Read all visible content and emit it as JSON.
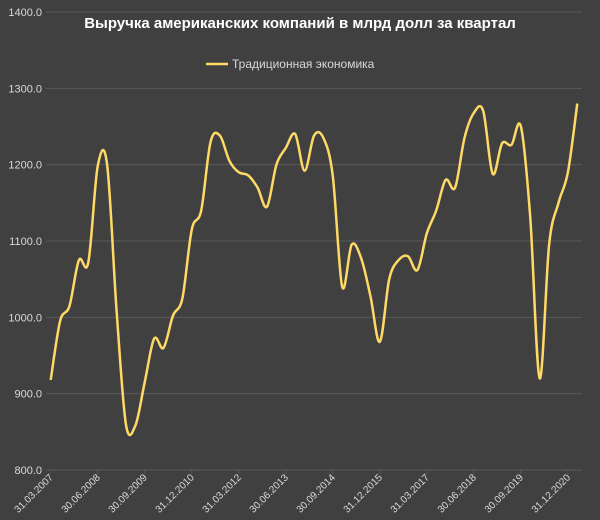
{
  "chart_data": {
    "type": "line",
    "title": "Выручка американских компаний в млрд долл за квартал",
    "legend_position": "top-center",
    "grid": true,
    "ylim": [
      800,
      1400
    ],
    "yticks": [
      "800.0",
      "900.0",
      "1000.0",
      "1100.0",
      "1200.0",
      "1300.0",
      "1400.0"
    ],
    "x_tick_labels": [
      "31.03.2007",
      "30.06.2008",
      "30.09.2009",
      "31.12.2010",
      "31.03.2012",
      "30.06.2013",
      "30.09.2014",
      "31.12.2015",
      "31.03.2017",
      "30.06.2018",
      "30.09.2019",
      "31.12.2020"
    ],
    "x": [
      "31.03.2007",
      "30.06.2007",
      "30.09.2007",
      "31.12.2007",
      "31.03.2008",
      "30.06.2008",
      "30.09.2008",
      "31.12.2008",
      "31.03.2009",
      "30.06.2009",
      "30.09.2009",
      "31.12.2009",
      "31.03.2010",
      "30.06.2010",
      "30.09.2010",
      "31.12.2010",
      "31.03.2011",
      "30.06.2011",
      "30.09.2011",
      "31.12.2011",
      "31.03.2012",
      "30.06.2012",
      "30.09.2012",
      "31.12.2012",
      "31.03.2013",
      "30.06.2013",
      "30.09.2013",
      "31.12.2013",
      "31.03.2014",
      "30.06.2014",
      "30.09.2014",
      "31.12.2014",
      "31.03.2015",
      "30.06.2015",
      "30.09.2015",
      "31.12.2015",
      "31.03.2016",
      "30.06.2016",
      "30.09.2016",
      "31.12.2016",
      "31.03.2017",
      "30.06.2017",
      "30.09.2017",
      "31.12.2017",
      "31.03.2018",
      "30.06.2018",
      "30.09.2018",
      "31.12.2018",
      "31.03.2019",
      "30.06.2019",
      "30.09.2019",
      "31.12.2019",
      "31.03.2020",
      "30.06.2020",
      "30.09.2020",
      "31.12.2020",
      "31.03.2021"
    ],
    "series": [
      {
        "name": "Традиционная экономика",
        "color": "#ffd966",
        "values": [
          918,
          995,
          1015,
          1075,
          1072,
          1198,
          1200,
          1010,
          860,
          858,
          915,
          972,
          960,
          1002,
          1025,
          1115,
          1140,
          1230,
          1238,
          1205,
          1190,
          1186,
          1170,
          1145,
          1200,
          1222,
          1240,
          1192,
          1238,
          1235,
          1185,
          1040,
          1095,
          1078,
          1028,
          968,
          1050,
          1075,
          1080,
          1062,
          1110,
          1140,
          1180,
          1170,
          1235,
          1268,
          1270,
          1188,
          1228,
          1226,
          1250,
          1130,
          920,
          1095,
          1150,
          1190,
          1280
        ]
      }
    ]
  }
}
